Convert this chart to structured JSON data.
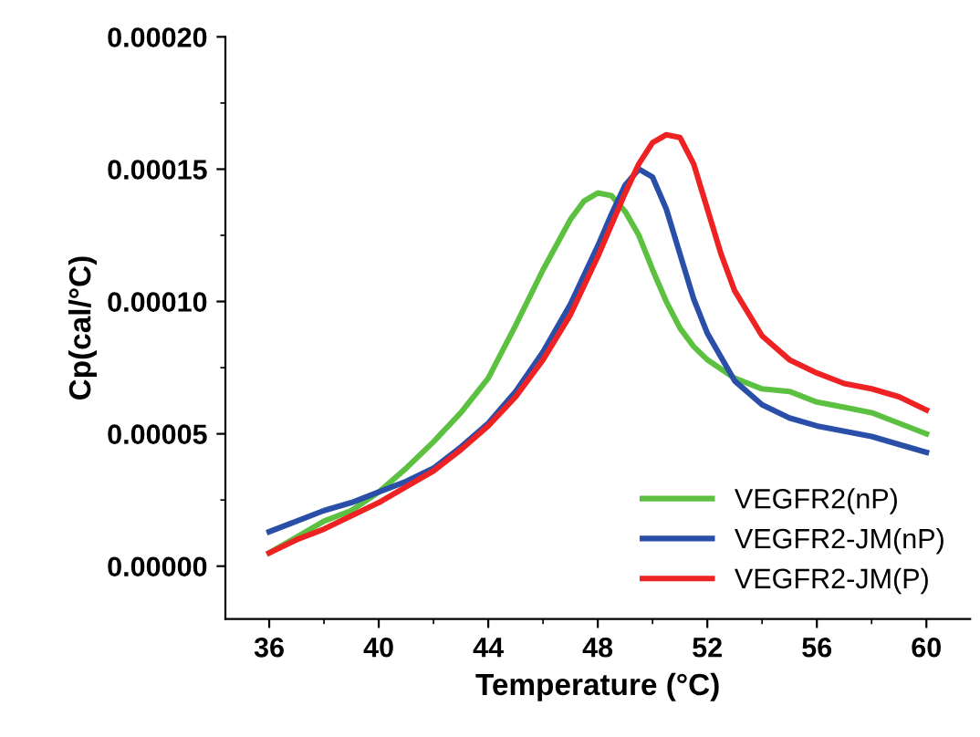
{
  "chart_data": {
    "type": "line",
    "xlabel": "Temperature (°C)",
    "ylabel": "Cp(cal/°C)",
    "xlim": [
      34.4,
      61.6
    ],
    "xticks": [
      36,
      40,
      44,
      48,
      52,
      56,
      60
    ],
    "ylim": [
      -2e-05,
      0.0002
    ],
    "yticks": [
      {
        "value": 0.0,
        "label": "0.00000"
      },
      {
        "value": 5e-05,
        "label": "0.00005"
      },
      {
        "value": 0.0001,
        "label": "0.00010"
      },
      {
        "value": 0.00015,
        "label": "0.00015"
      },
      {
        "value": 0.0002,
        "label": "0.00020"
      }
    ],
    "legend": "bottom right",
    "grid": false,
    "series": [
      {
        "name": "VEGFR2(nP)",
        "color": "#5cc140",
        "x": [
          36,
          37,
          38,
          39,
          40,
          41,
          42,
          43,
          44,
          45,
          46,
          47,
          47.5,
          48,
          48.5,
          49,
          49.5,
          50,
          50.5,
          51,
          51.5,
          52,
          53,
          54,
          55,
          56,
          57,
          58,
          59,
          60
        ],
        "values": [
          5e-06,
          1.1e-05,
          1.7e-05,
          2.1e-05,
          2.8e-05,
          3.7e-05,
          4.7e-05,
          5.8e-05,
          7.1e-05,
          9.1e-05,
          0.000112,
          0.000131,
          0.000138,
          0.000141,
          0.00014,
          0.000134,
          0.000125,
          0.000112,
          0.0001,
          9e-05,
          8.3e-05,
          7.8e-05,
          7.1e-05,
          6.7e-05,
          6.6e-05,
          6.2e-05,
          6e-05,
          5.8e-05,
          5.4e-05,
          5e-05
        ]
      },
      {
        "name": "VEGFR2-JM(nP)",
        "color": "#2a4fa8",
        "x": [
          36,
          37,
          38,
          39,
          40,
          41,
          42,
          43,
          44,
          45,
          46,
          47,
          48,
          48.5,
          49,
          49.5,
          50,
          50.5,
          51,
          51.5,
          52,
          53,
          54,
          55,
          56,
          57,
          58,
          59,
          60
        ],
        "values": [
          1.3e-05,
          1.7e-05,
          2.1e-05,
          2.4e-05,
          2.8e-05,
          3.2e-05,
          3.7e-05,
          4.5e-05,
          5.4e-05,
          6.6e-05,
          8.1e-05,
          9.9e-05,
          0.000121,
          0.000133,
          0.000144,
          0.00015,
          0.000147,
          0.000135,
          0.000118,
          0.000101,
          8.8e-05,
          7e-05,
          6.1e-05,
          5.6e-05,
          5.3e-05,
          5.1e-05,
          4.9e-05,
          4.6e-05,
          4.3e-05
        ]
      },
      {
        "name": "VEGFR2-JM(P)",
        "color": "#ee2222",
        "x": [
          36,
          37,
          38,
          39,
          40,
          41,
          42,
          43,
          44,
          45,
          46,
          47,
          48,
          49,
          49.5,
          50,
          50.5,
          51,
          51.5,
          52,
          52.5,
          53,
          54,
          55,
          56,
          57,
          58,
          59,
          60
        ],
        "values": [
          5e-06,
          1e-05,
          1.4e-05,
          1.9e-05,
          2.4e-05,
          3e-05,
          3.6e-05,
          4.4e-05,
          5.3e-05,
          6.4e-05,
          7.8e-05,
          9.5e-05,
          0.000117,
          0.000141,
          0.000152,
          0.00016,
          0.000163,
          0.000162,
          0.000152,
          0.000135,
          0.000118,
          0.000104,
          8.7e-05,
          7.8e-05,
          7.3e-05,
          6.9e-05,
          6.7e-05,
          6.4e-05,
          5.9e-05
        ]
      }
    ]
  }
}
